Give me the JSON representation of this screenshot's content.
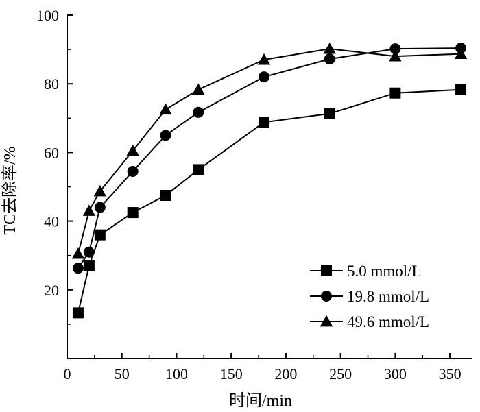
{
  "chart_data": {
    "type": "line",
    "title": "",
    "xlabel": "时间/min",
    "ylabel": "TC去除率/%",
    "xlim": [
      0,
      370
    ],
    "ylim": [
      0,
      100
    ],
    "x_ticks": [
      0,
      50,
      100,
      150,
      200,
      250,
      300,
      350
    ],
    "y_ticks": [
      20,
      40,
      60,
      80,
      100
    ],
    "grid": false,
    "legend_position": "bottom-right",
    "series": [
      {
        "name": "5.0 mmol/L",
        "marker": "square",
        "color": "#000000",
        "x": [
          10,
          20,
          30,
          60,
          90,
          120,
          180,
          240,
          300,
          360
        ],
        "y": [
          13.3,
          27.0,
          36.0,
          42.5,
          47.5,
          55.0,
          68.8,
          71.3,
          77.3,
          78.3
        ]
      },
      {
        "name": "19.8 mmol/L",
        "marker": "circle",
        "color": "#000000",
        "x": [
          10,
          20,
          30,
          60,
          90,
          120,
          180,
          240,
          300,
          360
        ],
        "y": [
          26.3,
          31.0,
          44.0,
          54.5,
          65.0,
          71.7,
          82.0,
          87.2,
          90.2,
          90.4
        ]
      },
      {
        "name": "49.6 mmol/L",
        "marker": "triangle",
        "color": "#000000",
        "x": [
          10,
          20,
          30,
          60,
          90,
          120,
          180,
          240,
          300,
          360
        ],
        "y": [
          30.5,
          43.0,
          48.7,
          60.5,
          72.5,
          78.3,
          87.0,
          90.2,
          88.0,
          88.7
        ]
      }
    ]
  }
}
